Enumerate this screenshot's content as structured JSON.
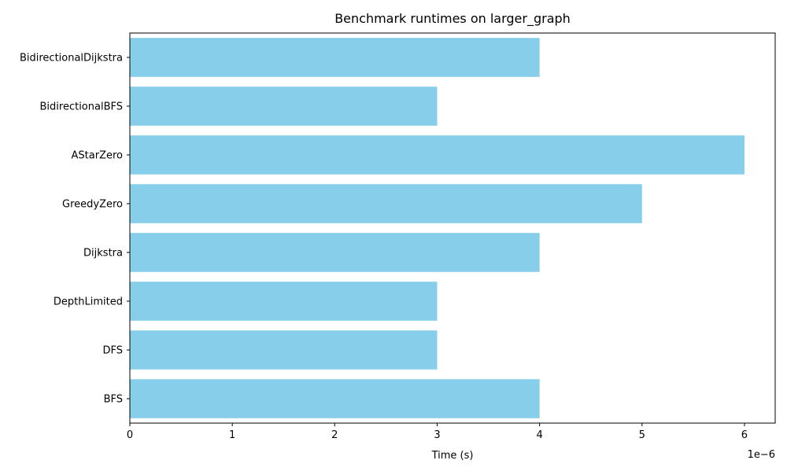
{
  "chart_data": {
    "type": "bar",
    "orientation": "horizontal",
    "title": "Benchmark runtimes on larger_graph",
    "xlabel": "Time (s)",
    "ylabel": "",
    "x_offset_label": "1e−6",
    "x_scale": 1e-06,
    "xlim": [
      0,
      6.3
    ],
    "x_ticks": [
      0,
      1,
      2,
      3,
      4,
      5,
      6
    ],
    "x_tick_labels": [
      "0",
      "1",
      "2",
      "3",
      "4",
      "5",
      "6"
    ],
    "categories": [
      "BFS",
      "DFS",
      "DepthLimited",
      "Dijkstra",
      "GreedyZero",
      "AStarZero",
      "BidirectionalBFS",
      "BidirectionalDijkstra"
    ],
    "values": [
      4,
      3,
      3,
      4,
      5,
      6,
      3,
      4
    ],
    "bar_color": "#87ceeb",
    "grid": false,
    "legend": "none"
  }
}
